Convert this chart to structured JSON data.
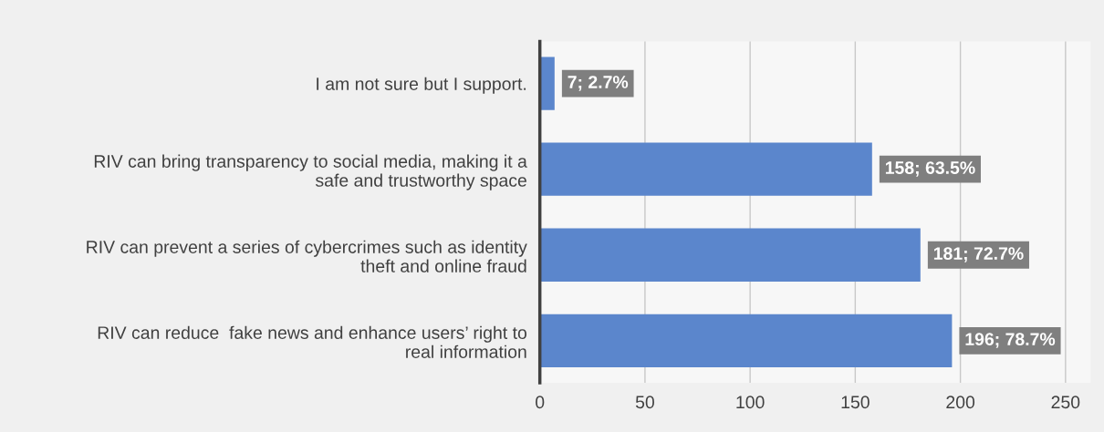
{
  "chart_data": {
    "type": "bar",
    "orientation": "horizontal",
    "categories": [
      "I am not sure but I support.",
      "RIV can bring transparency to social media, making it a\nsafe and trustworthy space",
      "RIV can prevent a series of cybercrimes such as identity\ntheft and online fraud",
      "RIV can reduce  fake news and enhance users’ right to\nreal information"
    ],
    "values": [
      7,
      158,
      181,
      196
    ],
    "value_labels": [
      "7; 2.7%",
      "158; 63.5%",
      "181; 72.7%",
      "196; 78.7%"
    ],
    "color": "#5b86cc",
    "xlim": [
      0,
      262
    ],
    "xticks": [
      0,
      50,
      100,
      150,
      200,
      250
    ],
    "grid": "x",
    "legend": false
  }
}
